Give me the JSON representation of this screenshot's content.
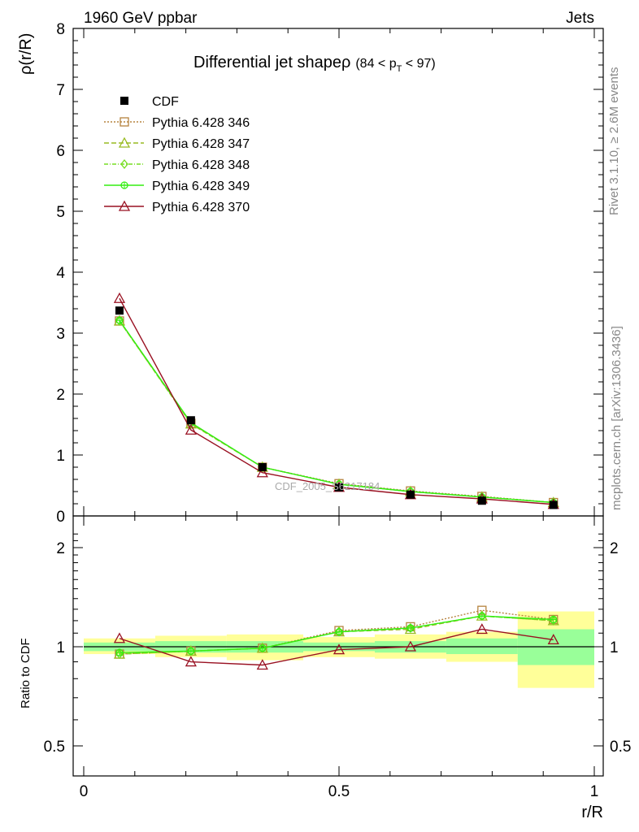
{
  "header": {
    "left": "1960 GeV ppbar",
    "right": "Jets"
  },
  "side_labels": {
    "rivet": "Rivet 3.1.10, ≥ 2.6M events",
    "mcplots": "mcplots.cern.ch [arXiv:1306.3436]"
  },
  "watermark": "CDF_2005_S6217184",
  "title": {
    "main": "Differential jet shapeρ",
    "cut_open": "(84 < p",
    "cut_sub": "T",
    "cut_close": " < 97)"
  },
  "ylabel_top": "ρ(r/R)",
  "ylabel_bottom": "Ratio to CDF",
  "xlabel": "r/R",
  "colors": {
    "band_outer": "#ffff99",
    "band_inner": "#99ff99",
    "ref": "#000000"
  },
  "chart_data": [
    {
      "type": "line",
      "name": "main",
      "xlim": [
        -0.02,
        1.02
      ],
      "ylim": [
        0,
        8
      ],
      "yticks": [
        0,
        1,
        2,
        3,
        4,
        5,
        6,
        7,
        8
      ],
      "x": [
        0.07,
        0.21,
        0.35,
        0.5,
        0.64,
        0.78,
        0.92
      ],
      "series": [
        {
          "name": "CDF",
          "color": "#000000",
          "marker": "square-filled",
          "dash": "",
          "values": [
            3.37,
            1.57,
            0.8,
            0.47,
            0.35,
            0.25,
            0.18
          ]
        },
        {
          "name": "Pythia 6.428 346",
          "color": "#b5833e",
          "marker": "square-open",
          "dash": "2,2",
          "values": [
            3.2,
            1.52,
            0.8,
            0.53,
            0.41,
            0.32,
            0.22
          ]
        },
        {
          "name": "Pythia 6.428 347",
          "color": "#99bb22",
          "marker": "triangle-open",
          "dash": "6,3",
          "values": [
            3.2,
            1.51,
            0.8,
            0.52,
            0.4,
            0.31,
            0.22
          ]
        },
        {
          "name": "Pythia 6.428 348",
          "color": "#77dd22",
          "marker": "diamond-open",
          "dash": "5,2,1,2",
          "values": [
            3.2,
            1.52,
            0.8,
            0.52,
            0.4,
            0.31,
            0.22
          ]
        },
        {
          "name": "Pythia 6.428 349",
          "color": "#33ee11",
          "marker": "circle-cross",
          "dash": "",
          "values": [
            3.21,
            1.53,
            0.8,
            0.52,
            0.4,
            0.31,
            0.22
          ]
        },
        {
          "name": "Pythia 6.428 370",
          "color": "#991122",
          "marker": "triangle-open",
          "dash": "",
          "values": [
            3.57,
            1.41,
            0.71,
            0.47,
            0.35,
            0.28,
            0.19
          ]
        }
      ]
    },
    {
      "type": "line",
      "name": "ratio",
      "xlim": [
        -0.02,
        1.02
      ],
      "ylim": [
        0.4,
        2.4
      ],
      "log_y": true,
      "yticks": [
        0.5,
        1,
        2
      ],
      "ytick_labels": [
        "0.5",
        "1",
        "2"
      ],
      "xticks": [
        0,
        0.5,
        1
      ],
      "xtick_labels": [
        "0",
        "0.5",
        "1"
      ],
      "bands": [
        {
          "x0": 0.0,
          "x1": 0.14,
          "outer": [
            0.95,
            1.06
          ],
          "inner": [
            0.97,
            1.03
          ]
        },
        {
          "x0": 0.14,
          "x1": 0.28,
          "outer": [
            0.93,
            1.08
          ],
          "inner": [
            0.96,
            1.04
          ]
        },
        {
          "x0": 0.28,
          "x1": 0.43,
          "outer": [
            0.91,
            1.09
          ],
          "inner": [
            0.96,
            1.04
          ]
        },
        {
          "x0": 0.43,
          "x1": 0.57,
          "outer": [
            0.93,
            1.07
          ],
          "inner": [
            0.97,
            1.03
          ]
        },
        {
          "x0": 0.57,
          "x1": 0.71,
          "outer": [
            0.92,
            1.09
          ],
          "inner": [
            0.96,
            1.04
          ]
        },
        {
          "x0": 0.71,
          "x1": 0.85,
          "outer": [
            0.9,
            1.11
          ],
          "inner": [
            0.95,
            1.06
          ]
        },
        {
          "x0": 0.85,
          "x1": 1.0,
          "outer": [
            0.75,
            1.28
          ],
          "inner": [
            0.88,
            1.13
          ]
        }
      ],
      "x": [
        0.07,
        0.21,
        0.35,
        0.5,
        0.64,
        0.78,
        0.92
      ],
      "series": [
        {
          "name": "Pythia 6.428 346",
          "color": "#b5833e",
          "marker": "square-open",
          "dash": "2,2",
          "values": [
            0.95,
            0.97,
            0.99,
            1.12,
            1.15,
            1.29,
            1.21
          ]
        },
        {
          "name": "Pythia 6.428 347",
          "color": "#99bb22",
          "marker": "triangle-open",
          "dash": "6,3",
          "values": [
            0.95,
            0.97,
            0.99,
            1.11,
            1.13,
            1.24,
            1.2
          ]
        },
        {
          "name": "Pythia 6.428 348",
          "color": "#77dd22",
          "marker": "diamond-open",
          "dash": "5,2,1,2",
          "values": [
            0.95,
            0.97,
            0.99,
            1.11,
            1.14,
            1.24,
            1.2
          ]
        },
        {
          "name": "Pythia 6.428 349",
          "color": "#33ee11",
          "marker": "circle-cross",
          "dash": "",
          "values": [
            0.96,
            0.97,
            0.99,
            1.11,
            1.14,
            1.24,
            1.21
          ]
        },
        {
          "name": "Pythia 6.428 370",
          "color": "#991122",
          "marker": "triangle-open",
          "dash": "",
          "values": [
            1.06,
            0.9,
            0.88,
            0.98,
            1.0,
            1.13,
            1.05
          ]
        }
      ]
    }
  ]
}
